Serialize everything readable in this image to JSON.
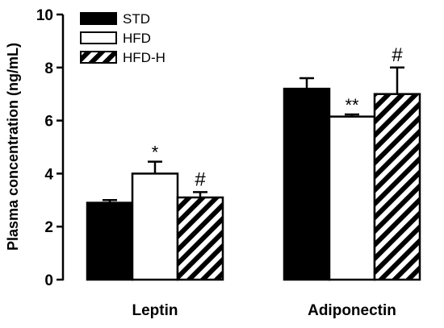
{
  "chart_data": {
    "type": "bar",
    "ylabel": "Plasma concentration (ng/mL)",
    "ylim": [
      0,
      10
    ],
    "yticks": [
      0,
      2,
      4,
      6,
      8,
      10
    ],
    "categories": [
      "Leptin",
      "Adiponectin"
    ],
    "legend_position": "top-left",
    "series": [
      {
        "name": "STD",
        "fill": "solid-black",
        "values": [
          2.9,
          7.2
        ],
        "errors": [
          0.1,
          0.4
        ],
        "annotations": [
          "",
          ""
        ]
      },
      {
        "name": "HFD",
        "fill": "white",
        "values": [
          4.0,
          6.15
        ],
        "errors": [
          0.45,
          0.08
        ],
        "annotations": [
          "*",
          "**"
        ]
      },
      {
        "name": "HFD-H",
        "fill": "diagonal-hatch",
        "values": [
          3.1,
          7.0
        ],
        "errors": [
          0.2,
          1.0
        ],
        "annotations": [
          "#",
          "#"
        ]
      }
    ]
  }
}
